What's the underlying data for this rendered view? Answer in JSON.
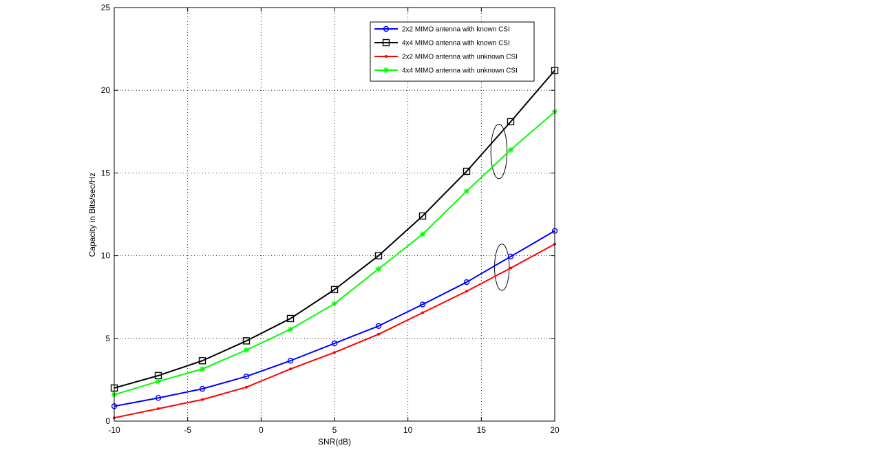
{
  "chart_data": {
    "type": "line",
    "xlabel": "SNR(dB)",
    "ylabel": "Capacity in Bits/sec/Hz",
    "xlim": [
      -10,
      20
    ],
    "ylim": [
      0,
      25
    ],
    "xticks": [
      -10,
      -5,
      0,
      5,
      10,
      15,
      20
    ],
    "yticks": [
      0,
      5,
      10,
      15,
      20,
      25
    ],
    "grid": true,
    "legend_position": "top-right",
    "x": [
      -10,
      -7,
      -4,
      -1,
      2,
      5,
      8,
      11,
      14,
      17,
      20
    ],
    "series": [
      {
        "name": "2x2 MIMO antenna with known CSI",
        "color": "#0000ff",
        "marker": "circle",
        "values": [
          0.9,
          1.4,
          1.95,
          2.7,
          3.65,
          4.7,
          5.75,
          7.05,
          8.4,
          9.95,
          11.5
        ]
      },
      {
        "name": "4x4 MIMO antenna with known CSI",
        "color": "#000000",
        "marker": "square",
        "values": [
          2.0,
          2.75,
          3.65,
          4.85,
          6.2,
          7.95,
          10.0,
          12.4,
          15.1,
          18.1,
          21.2
        ]
      },
      {
        "name": "2x2 MIMO antenna with unknown CSI",
        "color": "#ff0000",
        "marker": "point",
        "values": [
          0.2,
          0.75,
          1.3,
          2.05,
          3.15,
          4.15,
          5.25,
          6.55,
          7.85,
          9.25,
          10.7
        ]
      },
      {
        "name": "4x4 MIMO antenna with unknown CSI",
        "color": "#00ff00",
        "marker": "star",
        "values": [
          1.6,
          2.4,
          3.15,
          4.3,
          5.55,
          7.1,
          9.2,
          11.3,
          13.9,
          16.4,
          18.7
        ]
      }
    ],
    "annotations": [
      {
        "shape": "ellipse",
        "cx": 16.2,
        "cy": 16.3,
        "rx": 0.55,
        "ry": 1.65
      },
      {
        "shape": "ellipse",
        "cx": 16.4,
        "cy": 9.3,
        "rx": 0.5,
        "ry": 1.4
      }
    ]
  }
}
